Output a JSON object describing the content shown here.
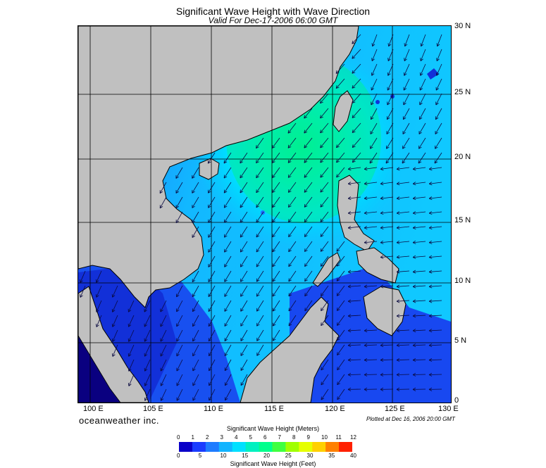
{
  "header": {
    "title": "Significant Wave Height with Wave Direction",
    "subtitle": "Valid For Dec-17-2006 06:00 GMT"
  },
  "axes": {
    "longitude_labels": [
      "100 E",
      "105 E",
      "110 E",
      "115 E",
      "120 E",
      "125 E",
      "130 E"
    ],
    "latitude_labels": [
      "30 N",
      "25 N",
      "20 N",
      "15 N",
      "10 N",
      "5 N",
      "0"
    ]
  },
  "footer": {
    "brand": "oceanweather inc.",
    "plotted": "Plotted at Dec 16, 2006 20:00 GMT"
  },
  "colorbar": {
    "meters_title": "Significant Wave Height (Meters)",
    "feet_title": "Significant Wave Height (Feet)",
    "meter_ticks": [
      "0",
      "1",
      "2",
      "3",
      "4",
      "5",
      "6",
      "7",
      "8",
      "9",
      "10",
      "11",
      "12"
    ],
    "feet_ticks": [
      "0",
      "5",
      "10",
      "15",
      "20",
      "25",
      "30",
      "35",
      "40"
    ],
    "colors": [
      "#0a00c8",
      "#1a3cff",
      "#1e7cff",
      "#12b4ff",
      "#00e0ff",
      "#00f0c0",
      "#00ff8c",
      "#40ff40",
      "#a0ff00",
      "#e6ff00",
      "#ffd000",
      "#ff8000",
      "#ff2000"
    ]
  },
  "colors": {
    "land": "#c0c0c0",
    "coast": "#000000",
    "arrow": "#0a0a40",
    "grid": "#000000"
  }
}
